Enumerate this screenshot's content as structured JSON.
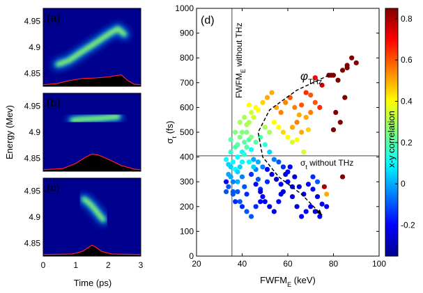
{
  "chart_data": [
    {
      "type": "heatmap",
      "panel_label": "(a)",
      "description_series": "electron beam phase space density with red current profile",
      "ridge": {
        "x": [
          0.45,
          0.8,
          1.2,
          1.6,
          2.0,
          2.3,
          2.5
        ],
        "y": [
          4.867,
          4.875,
          4.892,
          4.908,
          4.925,
          4.936,
          4.925
        ]
      },
      "profile": {
        "x": [
          0.0,
          0.4,
          0.8,
          1.2,
          1.6,
          2.0,
          2.4,
          2.6,
          2.8,
          3.0
        ],
        "y": [
          4.828,
          4.83,
          4.836,
          4.84,
          4.841,
          4.843,
          4.847,
          4.836,
          4.829,
          4.828
        ]
      },
      "xlim": [
        0,
        3
      ],
      "ylim": [
        4.825,
        4.975
      ]
    },
    {
      "type": "heatmap",
      "panel_label": "(b)",
      "ridge": {
        "x": [
          0.9,
          1.2,
          1.5,
          1.8,
          2.1,
          2.3
        ],
        "y": [
          4.923,
          4.925,
          4.926,
          4.927,
          4.929,
          4.93
        ]
      },
      "profile": {
        "x": [
          0.0,
          0.6,
          1.0,
          1.3,
          1.5,
          1.7,
          2.0,
          2.4,
          2.8,
          3.0
        ],
        "y": [
          4.828,
          4.83,
          4.84,
          4.852,
          4.858,
          4.856,
          4.848,
          4.836,
          4.829,
          4.828
        ]
      },
      "xlim": [
        0,
        3
      ],
      "ylim": [
        4.825,
        4.975
      ]
    },
    {
      "type": "heatmap",
      "panel_label": "(c)",
      "ridge": {
        "x": [
          1.25,
          1.4,
          1.55,
          1.7,
          1.85
        ],
        "y": [
          4.935,
          4.928,
          4.918,
          4.906,
          4.895
        ]
      },
      "profile": {
        "x": [
          0.0,
          0.9,
          1.2,
          1.4,
          1.5,
          1.6,
          1.8,
          2.1,
          3.0
        ],
        "y": [
          4.828,
          4.829,
          4.834,
          4.842,
          4.846,
          4.843,
          4.834,
          4.829,
          4.828
        ]
      },
      "xlim": [
        0,
        3
      ],
      "ylim": [
        4.825,
        4.975
      ]
    },
    {
      "type": "scatter",
      "panel_label": "(d)",
      "xlabel_main": "FWFM",
      "xlabel_sub": "E",
      "xlabel_unit": " (keV)",
      "ylabel_main": "σ",
      "ylabel_sub": "t",
      "ylabel_unit": " (fs)",
      "xlim": [
        20,
        100
      ],
      "ylim": [
        0,
        1000
      ],
      "xticks": [
        "20",
        "40",
        "60",
        "80",
        "100"
      ],
      "yticks": [
        "0",
        "100",
        "200",
        "300",
        "400",
        "500",
        "600",
        "700",
        "800",
        "900",
        "1000"
      ],
      "ref_vline": {
        "x": 35.5,
        "label_main": "FWFM",
        "label_sub": "E",
        "label_rest": " without THz"
      },
      "ref_hline": {
        "y": 405,
        "label_main": "σ",
        "label_sub": "t",
        "label_rest": " without THz"
      },
      "arrow_label_main": "φ",
      "arrow_label_sub": "THz",
      "arrow_path": [
        [
          78,
          730
        ],
        [
          64,
          670
        ],
        [
          52,
          590
        ],
        [
          47,
          500
        ],
        [
          49,
          400
        ],
        [
          56,
          320
        ],
        [
          66,
          250
        ],
        [
          75,
          165
        ]
      ],
      "points": [
        [
          33,
          300,
          -0.2
        ],
        [
          34,
          280,
          -0.1
        ],
        [
          35,
          320,
          0.0
        ],
        [
          36,
          260,
          -0.1
        ],
        [
          37,
          350,
          0.1
        ],
        [
          38,
          300,
          0.0
        ],
        [
          36,
          380,
          0.1
        ],
        [
          35,
          420,
          0.15
        ],
        [
          37,
          440,
          0.2
        ],
        [
          38,
          400,
          0.1
        ],
        [
          39,
          360,
          0.05
        ],
        [
          40,
          320,
          -0.05
        ],
        [
          41,
          280,
          -0.1
        ],
        [
          42,
          250,
          -0.15
        ],
        [
          40,
          420,
          0.1
        ],
        [
          41,
          460,
          0.2
        ],
        [
          42,
          500,
          0.25
        ],
        [
          43,
          470,
          0.2
        ],
        [
          44,
          430,
          0.1
        ],
        [
          45,
          390,
          0.0
        ],
        [
          46,
          350,
          -0.05
        ],
        [
          47,
          310,
          -0.1
        ],
        [
          48,
          270,
          -0.15
        ],
        [
          49,
          240,
          -0.2
        ],
        [
          43,
          540,
          0.3
        ],
        [
          45,
          560,
          0.35
        ],
        [
          47,
          590,
          0.4
        ],
        [
          49,
          620,
          0.45
        ],
        [
          51,
          640,
          0.5
        ],
        [
          53,
          660,
          0.5
        ],
        [
          55,
          600,
          0.5
        ],
        [
          57,
          580,
          0.55
        ],
        [
          59,
          620,
          0.55
        ],
        [
          61,
          640,
          0.6
        ],
        [
          63,
          600,
          0.55
        ],
        [
          65,
          570,
          0.5
        ],
        [
          50,
          520,
          0.3
        ],
        [
          52,
          500,
          0.3
        ],
        [
          54,
          540,
          0.4
        ],
        [
          56,
          520,
          0.4
        ],
        [
          58,
          500,
          0.45
        ],
        [
          60,
          480,
          0.4
        ],
        [
          62,
          520,
          0.5
        ],
        [
          64,
          540,
          0.55
        ],
        [
          66,
          610,
          0.6
        ],
        [
          68,
          660,
          0.65
        ],
        [
          66,
          500,
          0.5
        ],
        [
          70,
          650,
          0.6
        ],
        [
          72,
          720,
          0.7
        ],
        [
          75,
          690,
          0.75
        ],
        [
          78,
          730,
          1.15
        ],
        [
          80,
          730,
          1.15
        ],
        [
          82,
          710,
          1.2
        ],
        [
          84,
          750,
          1.3
        ],
        [
          86,
          770,
          1.35
        ],
        [
          88,
          800,
          1.4
        ],
        [
          90,
          780,
          1.4
        ],
        [
          85,
          640,
          1.0
        ],
        [
          83,
          540,
          1.0
        ],
        [
          80,
          510,
          0.85
        ],
        [
          81,
          580,
          0.9
        ],
        [
          84,
          320,
          1.3
        ],
        [
          86,
          760,
          1.3
        ],
        [
          79,
          730,
          1.2
        ],
        [
          44,
          330,
          -0.15
        ],
        [
          46,
          290,
          -0.2
        ],
        [
          48,
          260,
          -0.25
        ],
        [
          50,
          220,
          -0.2
        ],
        [
          52,
          200,
          -0.25
        ],
        [
          54,
          180,
          -0.25
        ],
        [
          56,
          220,
          -0.2
        ],
        [
          58,
          260,
          -0.25
        ],
        [
          60,
          300,
          -0.2
        ],
        [
          62,
          240,
          -0.25
        ],
        [
          64,
          200,
          -0.25
        ],
        [
          66,
          160,
          -0.2
        ],
        [
          68,
          180,
          -0.2
        ],
        [
          70,
          200,
          -0.2
        ],
        [
          72,
          180,
          -0.25
        ],
        [
          74,
          160,
          -0.2
        ],
        [
          51,
          350,
          -0.2
        ],
        [
          53,
          330,
          -0.25
        ],
        [
          55,
          310,
          -0.25
        ],
        [
          57,
          290,
          -0.2
        ],
        [
          59,
          330,
          -0.25
        ],
        [
          61,
          360,
          -0.2
        ],
        [
          63,
          320,
          -0.25
        ],
        [
          65,
          280,
          -0.25
        ],
        [
          67,
          250,
          -0.25
        ],
        [
          69,
          290,
          -0.2
        ],
        [
          71,
          270,
          -0.2
        ],
        [
          73,
          240,
          -0.25
        ],
        [
          75,
          210,
          -0.2
        ],
        [
          77,
          200,
          -0.2
        ],
        [
          62,
          280,
          -0.25
        ],
        [
          57,
          250,
          -0.25
        ],
        [
          35,
          360,
          0.05
        ],
        [
          34,
          330,
          0.0
        ],
        [
          33,
          260,
          -0.1
        ],
        [
          36,
          300,
          -0.05
        ],
        [
          38,
          260,
          -0.1
        ],
        [
          39,
          220,
          -0.1
        ],
        [
          37,
          220,
          -0.15
        ],
        [
          40,
          200,
          -0.15
        ],
        [
          42,
          180,
          -0.1
        ],
        [
          44,
          160,
          -0.1
        ],
        [
          46,
          200,
          -0.15
        ],
        [
          48,
          220,
          -0.2
        ],
        [
          38,
          450,
          0.2
        ],
        [
          39,
          480,
          0.25
        ],
        [
          40,
          500,
          0.25
        ],
        [
          42,
          530,
          0.3
        ],
        [
          44,
          580,
          0.35
        ],
        [
          46,
          600,
          0.4
        ],
        [
          41,
          410,
          0.15
        ],
        [
          43,
          380,
          0.1
        ],
        [
          45,
          360,
          0.05
        ],
        [
          47,
          380,
          0.0
        ],
        [
          49,
          360,
          -0.05
        ],
        [
          51,
          300,
          -0.15
        ],
        [
          76,
          280,
          0.8
        ],
        [
          77,
          250,
          0.5
        ],
        [
          73,
          300,
          -0.1
        ],
        [
          71,
          320,
          -0.15
        ],
        [
          56,
          380,
          -0.1
        ],
        [
          58,
          360,
          -0.15
        ],
        [
          60,
          340,
          -0.2
        ],
        [
          54,
          390,
          -0.05
        ],
        [
          52,
          420,
          0.05
        ],
        [
          50,
          450,
          0.15
        ],
        [
          48,
          480,
          0.2
        ],
        [
          46,
          460,
          0.2
        ],
        [
          44,
          480,
          0.25
        ],
        [
          42,
          440,
          0.2
        ],
        [
          40,
          380,
          0.1
        ],
        [
          38,
          340,
          0.05
        ],
        [
          36,
          250,
          -0.1
        ],
        [
          34,
          370,
          0.05
        ],
        [
          33,
          390,
          0.1
        ],
        [
          35,
          470,
          0.2
        ],
        [
          37,
          500,
          0.25
        ],
        [
          39,
          540,
          0.3
        ],
        [
          41,
          560,
          0.3
        ],
        [
          43,
          610,
          0.4
        ],
        [
          64,
          470,
          0.4
        ],
        [
          62,
          460,
          0.35
        ],
        [
          67,
          420,
          0.35
        ],
        [
          69,
          510,
          0.45
        ],
        [
          72,
          620,
          0.6
        ],
        [
          74,
          600,
          0.65
        ],
        [
          70,
          580,
          0.55
        ],
        [
          68,
          560,
          0.5
        ]
      ]
    },
    {
      "type": "colorbar",
      "label": "x-y correlation",
      "ticks": [
        "-0.2",
        "0",
        "0.2",
        "0.4",
        "0.6",
        "0.8"
      ],
      "range": [
        -0.35,
        0.85
      ]
    }
  ],
  "labels": {
    "yaxis_left": "Energy (Mev)",
    "xaxis_left": "Time (ps)",
    "left_yticks": [
      "4.95",
      "4.9",
      "4.85"
    ],
    "left_xticks": [
      "0",
      "1",
      "2",
      "3"
    ]
  }
}
